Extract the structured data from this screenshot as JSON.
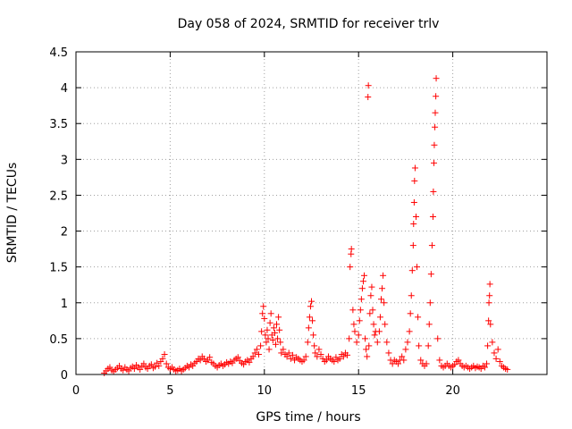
{
  "chart_data": {
    "type": "scatter",
    "title": "Day 058 of 2024, SRMTID for receiver trlv",
    "xlabel": "GPS time / hours",
    "ylabel": "SRMTID / TECUs",
    "xlim": [
      0,
      25
    ],
    "ylim": [
      0,
      4.5
    ],
    "x_ticks": [
      0,
      5,
      10,
      15,
      20
    ],
    "x_tick_labels": [
      "0",
      "5",
      "10",
      "15",
      "20"
    ],
    "y_ticks": [
      0,
      0.5,
      1,
      1.5,
      2,
      2.5,
      3,
      3.5,
      4,
      4.5
    ],
    "y_tick_labels": [
      "0",
      "0.5",
      "1",
      "1.5",
      "2",
      "2.5",
      "3",
      "3.5",
      "4",
      "4.5"
    ],
    "grid": true,
    "marker": "+",
    "color": "#ff0000",
    "series": [
      {
        "name": "SRMTID",
        "points": [
          [
            1.5,
            0.02
          ],
          [
            1.6,
            0.05
          ],
          [
            1.7,
            0.08
          ],
          [
            1.8,
            0.1
          ],
          [
            1.9,
            0.06
          ],
          [
            2.0,
            0.04
          ],
          [
            2.1,
            0.07
          ],
          [
            2.2,
            0.09
          ],
          [
            2.3,
            0.12
          ],
          [
            2.4,
            0.08
          ],
          [
            2.5,
            0.06
          ],
          [
            2.6,
            0.1
          ],
          [
            2.7,
            0.07
          ],
          [
            2.8,
            0.05
          ],
          [
            2.9,
            0.09
          ],
          [
            3.0,
            0.11
          ],
          [
            3.1,
            0.08
          ],
          [
            3.2,
            0.13
          ],
          [
            3.3,
            0.1
          ],
          [
            3.4,
            0.07
          ],
          [
            3.5,
            0.12
          ],
          [
            3.6,
            0.15
          ],
          [
            3.7,
            0.1
          ],
          [
            3.8,
            0.08
          ],
          [
            3.9,
            0.12
          ],
          [
            4.0,
            0.14
          ],
          [
            4.1,
            0.09
          ],
          [
            4.2,
            0.11
          ],
          [
            4.3,
            0.16
          ],
          [
            4.4,
            0.12
          ],
          [
            4.5,
            0.18
          ],
          [
            4.6,
            0.22
          ],
          [
            4.7,
            0.28
          ],
          [
            4.8,
            0.15
          ],
          [
            4.9,
            0.1
          ],
          [
            5.0,
            0.08
          ],
          [
            5.1,
            0.1
          ],
          [
            5.2,
            0.07
          ],
          [
            5.3,
            0.05
          ],
          [
            5.4,
            0.06
          ],
          [
            5.5,
            0.08
          ],
          [
            5.6,
            0.05
          ],
          [
            5.7,
            0.07
          ],
          [
            5.8,
            0.09
          ],
          [
            5.9,
            0.12
          ],
          [
            6.0,
            0.1
          ],
          [
            6.1,
            0.14
          ],
          [
            6.2,
            0.12
          ],
          [
            6.3,
            0.16
          ],
          [
            6.4,
            0.18
          ],
          [
            6.5,
            0.22
          ],
          [
            6.6,
            0.2
          ],
          [
            6.7,
            0.25
          ],
          [
            6.8,
            0.22
          ],
          [
            6.9,
            0.18
          ],
          [
            7.0,
            0.2
          ],
          [
            7.1,
            0.24
          ],
          [
            7.2,
            0.17
          ],
          [
            7.3,
            0.15
          ],
          [
            7.4,
            0.12
          ],
          [
            7.5,
            0.1
          ],
          [
            7.6,
            0.13
          ],
          [
            7.7,
            0.15
          ],
          [
            7.8,
            0.12
          ],
          [
            7.9,
            0.14
          ],
          [
            8.0,
            0.17
          ],
          [
            8.1,
            0.15
          ],
          [
            8.2,
            0.18
          ],
          [
            8.3,
            0.16
          ],
          [
            8.4,
            0.2
          ],
          [
            8.5,
            0.22
          ],
          [
            8.6,
            0.24
          ],
          [
            8.7,
            0.19
          ],
          [
            8.8,
            0.16
          ],
          [
            8.9,
            0.14
          ],
          [
            9.0,
            0.18
          ],
          [
            9.1,
            0.2
          ],
          [
            9.2,
            0.17
          ],
          [
            9.3,
            0.22
          ],
          [
            9.4,
            0.25
          ],
          [
            9.5,
            0.3
          ],
          [
            9.6,
            0.35
          ],
          [
            9.7,
            0.28
          ],
          [
            9.8,
            0.4
          ],
          [
            9.85,
            0.6
          ],
          [
            9.9,
            0.85
          ],
          [
            9.95,
            0.95
          ],
          [
            10.0,
            0.78
          ],
          [
            10.05,
            0.55
          ],
          [
            10.1,
            0.45
          ],
          [
            10.15,
            0.62
          ],
          [
            10.2,
            0.5
          ],
          [
            10.25,
            0.35
          ],
          [
            10.3,
            0.72
          ],
          [
            10.35,
            0.85
          ],
          [
            10.4,
            0.55
          ],
          [
            10.45,
            0.48
          ],
          [
            10.5,
            0.65
          ],
          [
            10.55,
            0.58
          ],
          [
            10.6,
            0.42
          ],
          [
            10.65,
            0.7
          ],
          [
            10.7,
            0.5
          ],
          [
            10.75,
            0.8
          ],
          [
            10.8,
            0.62
          ],
          [
            10.85,
            0.45
          ],
          [
            10.9,
            0.3
          ],
          [
            11.0,
            0.35
          ],
          [
            11.1,
            0.28
          ],
          [
            11.2,
            0.25
          ],
          [
            11.3,
            0.3
          ],
          [
            11.4,
            0.22
          ],
          [
            11.5,
            0.27
          ],
          [
            11.6,
            0.2
          ],
          [
            11.7,
            0.24
          ],
          [
            11.8,
            0.22
          ],
          [
            11.9,
            0.2
          ],
          [
            12.0,
            0.18
          ],
          [
            12.1,
            0.2
          ],
          [
            12.2,
            0.25
          ],
          [
            12.3,
            0.45
          ],
          [
            12.35,
            0.65
          ],
          [
            12.4,
            0.8
          ],
          [
            12.45,
            0.95
          ],
          [
            12.5,
            1.02
          ],
          [
            12.55,
            0.75
          ],
          [
            12.6,
            0.55
          ],
          [
            12.65,
            0.4
          ],
          [
            12.7,
            0.3
          ],
          [
            12.8,
            0.25
          ],
          [
            12.9,
            0.35
          ],
          [
            13.0,
            0.28
          ],
          [
            13.1,
            0.22
          ],
          [
            13.2,
            0.18
          ],
          [
            13.3,
            0.2
          ],
          [
            13.4,
            0.25
          ],
          [
            13.5,
            0.22
          ],
          [
            13.6,
            0.2
          ],
          [
            13.7,
            0.18
          ],
          [
            13.8,
            0.24
          ],
          [
            13.9,
            0.2
          ],
          [
            14.0,
            0.22
          ],
          [
            14.1,
            0.28
          ],
          [
            14.2,
            0.25
          ],
          [
            14.3,
            0.3
          ],
          [
            14.4,
            0.27
          ],
          [
            14.5,
            0.5
          ],
          [
            14.55,
            1.5
          ],
          [
            14.6,
            1.68
          ],
          [
            14.62,
            1.75
          ],
          [
            14.7,
            0.9
          ],
          [
            14.75,
            0.7
          ],
          [
            14.8,
            0.6
          ],
          [
            14.9,
            0.45
          ],
          [
            15.0,
            0.55
          ],
          [
            15.05,
            0.75
          ],
          [
            15.1,
            0.9
          ],
          [
            15.15,
            1.05
          ],
          [
            15.2,
            1.2
          ],
          [
            15.25,
            1.3
          ],
          [
            15.3,
            1.38
          ],
          [
            15.35,
            0.5
          ],
          [
            15.4,
            0.35
          ],
          [
            15.45,
            0.25
          ],
          [
            15.5,
            3.87
          ],
          [
            15.52,
            4.03
          ],
          [
            15.55,
            0.4
          ],
          [
            15.6,
            0.85
          ],
          [
            15.65,
            1.1
          ],
          [
            15.7,
            1.22
          ],
          [
            15.75,
            0.9
          ],
          [
            15.8,
            0.7
          ],
          [
            15.85,
            0.55
          ],
          [
            15.9,
            0.6
          ],
          [
            16.0,
            0.45
          ],
          [
            16.1,
            0.6
          ],
          [
            16.15,
            0.8
          ],
          [
            16.2,
            1.05
          ],
          [
            16.25,
            1.2
          ],
          [
            16.3,
            1.38
          ],
          [
            16.35,
            1.0
          ],
          [
            16.4,
            0.7
          ],
          [
            16.5,
            0.45
          ],
          [
            16.6,
            0.3
          ],
          [
            16.7,
            0.2
          ],
          [
            16.8,
            0.15
          ],
          [
            16.9,
            0.2
          ],
          [
            17.0,
            0.18
          ],
          [
            17.1,
            0.15
          ],
          [
            17.2,
            0.2
          ],
          [
            17.3,
            0.25
          ],
          [
            17.4,
            0.2
          ],
          [
            17.5,
            0.35
          ],
          [
            17.6,
            0.45
          ],
          [
            17.7,
            0.6
          ],
          [
            17.75,
            0.85
          ],
          [
            17.8,
            1.1
          ],
          [
            17.85,
            1.45
          ],
          [
            17.9,
            1.8
          ],
          [
            17.92,
            2.1
          ],
          [
            17.95,
            2.4
          ],
          [
            17.97,
            2.7
          ],
          [
            18.0,
            2.88
          ],
          [
            18.05,
            2.2
          ],
          [
            18.1,
            1.5
          ],
          [
            18.15,
            0.8
          ],
          [
            18.2,
            0.4
          ],
          [
            18.3,
            0.2
          ],
          [
            18.4,
            0.15
          ],
          [
            18.5,
            0.12
          ],
          [
            18.6,
            0.15
          ],
          [
            18.7,
            0.4
          ],
          [
            18.75,
            0.7
          ],
          [
            18.8,
            1.0
          ],
          [
            18.85,
            1.4
          ],
          [
            18.9,
            1.8
          ],
          [
            18.95,
            2.2
          ],
          [
            18.97,
            2.55
          ],
          [
            19.0,
            2.95
          ],
          [
            19.02,
            3.2
          ],
          [
            19.05,
            3.45
          ],
          [
            19.07,
            3.65
          ],
          [
            19.1,
            3.88
          ],
          [
            19.12,
            4.13
          ],
          [
            19.2,
            0.5
          ],
          [
            19.3,
            0.2
          ],
          [
            19.4,
            0.12
          ],
          [
            19.5,
            0.1
          ],
          [
            19.6,
            0.12
          ],
          [
            19.7,
            0.15
          ],
          [
            19.8,
            0.12
          ],
          [
            19.9,
            0.1
          ],
          [
            20.0,
            0.12
          ],
          [
            20.1,
            0.14
          ],
          [
            20.2,
            0.18
          ],
          [
            20.3,
            0.2
          ],
          [
            20.4,
            0.15
          ],
          [
            20.5,
            0.12
          ],
          [
            20.6,
            0.1
          ],
          [
            20.7,
            0.12
          ],
          [
            20.8,
            0.1
          ],
          [
            20.9,
            0.08
          ],
          [
            21.0,
            0.1
          ],
          [
            21.1,
            0.12
          ],
          [
            21.2,
            0.09
          ],
          [
            21.3,
            0.11
          ],
          [
            21.4,
            0.1
          ],
          [
            21.5,
            0.08
          ],
          [
            21.6,
            0.12
          ],
          [
            21.7,
            0.1
          ],
          [
            21.8,
            0.15
          ],
          [
            21.85,
            0.4
          ],
          [
            21.9,
            0.75
          ],
          [
            21.92,
            1.0
          ],
          [
            21.95,
            1.1
          ],
          [
            21.97,
            1.26
          ],
          [
            22.0,
            0.7
          ],
          [
            22.1,
            0.45
          ],
          [
            22.2,
            0.3
          ],
          [
            22.3,
            0.22
          ],
          [
            22.4,
            0.35
          ],
          [
            22.5,
            0.18
          ],
          [
            22.6,
            0.12
          ],
          [
            22.7,
            0.1
          ],
          [
            22.8,
            0.08
          ],
          [
            22.9,
            0.07
          ]
        ]
      }
    ]
  }
}
